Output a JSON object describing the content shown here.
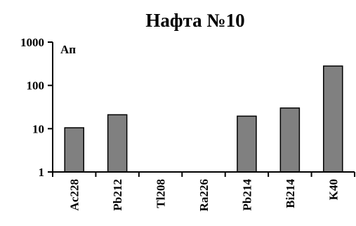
{
  "chart_data": {
    "type": "bar",
    "title": "Нафта №10",
    "unit_label": "Ап",
    "scale": "log",
    "ylim": [
      1,
      1000
    ],
    "yticks": [
      "1",
      "10",
      "100",
      "1000"
    ],
    "categories": [
      "Ac228",
      "Pb212",
      "Tl208",
      "Ra226",
      "Pb214",
      "Bi214",
      "K40"
    ],
    "values": [
      10.5,
      21,
      null,
      null,
      19.5,
      30,
      280
    ],
    "bar_color": "#808080",
    "grid": false,
    "legend": "none"
  }
}
